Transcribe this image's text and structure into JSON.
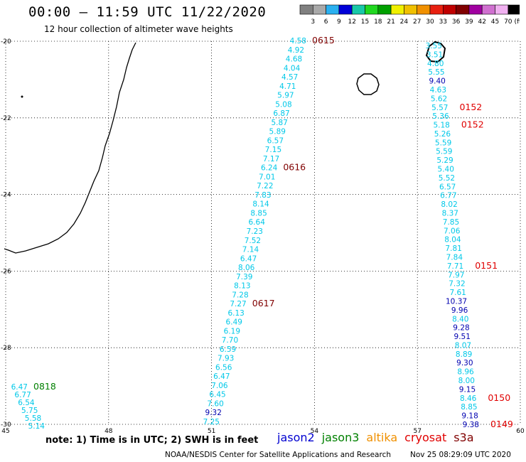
{
  "header": {
    "title": "00:00 – 11:59 UTC 11/22/2020",
    "subtitle": "12 hour collection of altimeter wave heights"
  },
  "legend": {
    "unit_label": "(ft)",
    "steps": [
      {
        "label": "3",
        "color": "#808080"
      },
      {
        "label": "6",
        "color": "#a9a9a9"
      },
      {
        "label": "9",
        "color": "#2ab0f0"
      },
      {
        "label": "12",
        "color": "#0000d8"
      },
      {
        "label": "15",
        "color": "#18c8a8"
      },
      {
        "label": "18",
        "color": "#20d820"
      },
      {
        "label": "21",
        "color": "#00a000"
      },
      {
        "label": "24",
        "color": "#f0f000"
      },
      {
        "label": "27",
        "color": "#f0c000"
      },
      {
        "label": "30",
        "color": "#f09000"
      },
      {
        "label": "33",
        "color": "#e82010"
      },
      {
        "label": "36",
        "color": "#c00000"
      },
      {
        "label": "39",
        "color": "#800000"
      },
      {
        "label": "42",
        "color": "#a000a0"
      },
      {
        "label": "45",
        "color": "#d070d0"
      },
      {
        "label": "70",
        "color": "#f0b0f0"
      },
      {
        "label": "",
        "color": "#000000"
      }
    ]
  },
  "map": {
    "lon_min": 45,
    "lon_max": 60,
    "lat_min": -30,
    "lat_max": -20,
    "lon_ticks": [
      45,
      48,
      51,
      54,
      57,
      60
    ],
    "lat_ticks": [
      -20,
      -22,
      -24,
      -26,
      -28,
      -30
    ],
    "lon_labels": [
      "45",
      "48",
      "51",
      "54",
      "57",
      "60"
    ],
    "lat_labels": [
      "-20",
      "-22",
      "-24",
      "-26",
      "-28",
      "-30"
    ],
    "colors": {
      "light": "#00c8e8",
      "dark": "#0000b0",
      "jason3_time": "#008000",
      "cryosat_time": "#e00000",
      "s3a_time": "#800000"
    }
  },
  "tracks": {
    "s3a": {
      "values": [
        "4.58",
        "4.92",
        "4.68",
        "4.04",
        "4.57",
        "4.71",
        "5.97",
        "5.08",
        "6.87",
        "5.87",
        "5.89",
        "6.57",
        "7.15",
        "7.17",
        "6.24",
        "7.01",
        "7.22",
        "7.83",
        "8.14",
        "8.85",
        "6.64",
        "7.23",
        "7.52",
        "7.14",
        "6.47",
        "8.06",
        "7.39",
        "8.13",
        "7.28",
        "7.27",
        "6.13",
        "6.49",
        "6.19",
        "7.70",
        "6.59",
        "7.93",
        "6.56",
        "6.47",
        "7.06",
        "6.45",
        "7.60",
        "9.32",
        "7.25"
      ],
      "dark": [
        false,
        false,
        false,
        false,
        false,
        false,
        false,
        false,
        false,
        false,
        false,
        false,
        false,
        false,
        false,
        false,
        false,
        false,
        false,
        false,
        false,
        false,
        false,
        false,
        false,
        false,
        false,
        false,
        false,
        false,
        false,
        false,
        false,
        false,
        false,
        false,
        false,
        false,
        false,
        false,
        false,
        true,
        false
      ],
      "times": [
        {
          "label": "0615",
          "idx": 0
        },
        {
          "label": "0616",
          "idx": 14
        },
        {
          "label": "0617",
          "idx": 29
        }
      ]
    },
    "cryosat": {
      "values": [
        "3.55",
        "3.51",
        "4.80",
        "5.55",
        "9.40",
        "4.63",
        "5.62",
        "5.57",
        "5.36",
        "5.18",
        "5.26",
        "5.59",
        "5.59",
        "5.29",
        "5.40",
        "5.52",
        "6.57",
        "6.77",
        "8.02",
        "8.37",
        "7.85",
        "7.06",
        "8.04",
        "7.81",
        "7.84",
        "7.71",
        "7.97",
        "7.32",
        "7.61",
        "10.37",
        "9.96",
        "8.40",
        "9.28",
        "9.51",
        "8.07",
        "8.89",
        "9.30",
        "8.96",
        "8.00",
        "9.15",
        "8.46",
        "8.85",
        "9.18",
        "9.38"
      ],
      "dark": [
        false,
        false,
        false,
        false,
        true,
        false,
        false,
        false,
        false,
        false,
        false,
        false,
        false,
        false,
        false,
        false,
        false,
        false,
        false,
        false,
        false,
        false,
        false,
        false,
        false,
        false,
        false,
        false,
        false,
        true,
        true,
        false,
        true,
        true,
        false,
        false,
        true,
        false,
        false,
        true,
        false,
        false,
        true,
        true
      ],
      "times": [
        {
          "label": "0152",
          "idx": 7
        },
        {
          "label": "0152",
          "idx": 9
        },
        {
          "label": "0151",
          "idx": 25
        },
        {
          "label": "0150",
          "idx": 40
        },
        {
          "label": "0149",
          "idx": 43
        }
      ]
    },
    "jason3": {
      "values": [
        "6.47",
        "6.77",
        "6.54",
        "5.75",
        "5.58",
        "5.14"
      ],
      "dark": [
        false,
        false,
        false,
        false,
        false,
        false
      ],
      "times": [
        {
          "label": "0818",
          "idx": 0
        }
      ]
    }
  },
  "footer": {
    "note": "note: 1) Time is in UTC; 2) SWH is in feet",
    "satellites": [
      {
        "label": "jason2",
        "color": "#0000d0"
      },
      {
        "label": "jason3",
        "color": "#008000"
      },
      {
        "label": "altika",
        "color": "#f09000"
      },
      {
        "label": "cryosat",
        "color": "#e00000"
      },
      {
        "label": "s3a",
        "color": "#800000"
      }
    ],
    "credit": "NOAA/NESDIS Center for Satellite Applications and Research",
    "timestamp": "Nov 25 08:29:09 UTC 2020"
  }
}
